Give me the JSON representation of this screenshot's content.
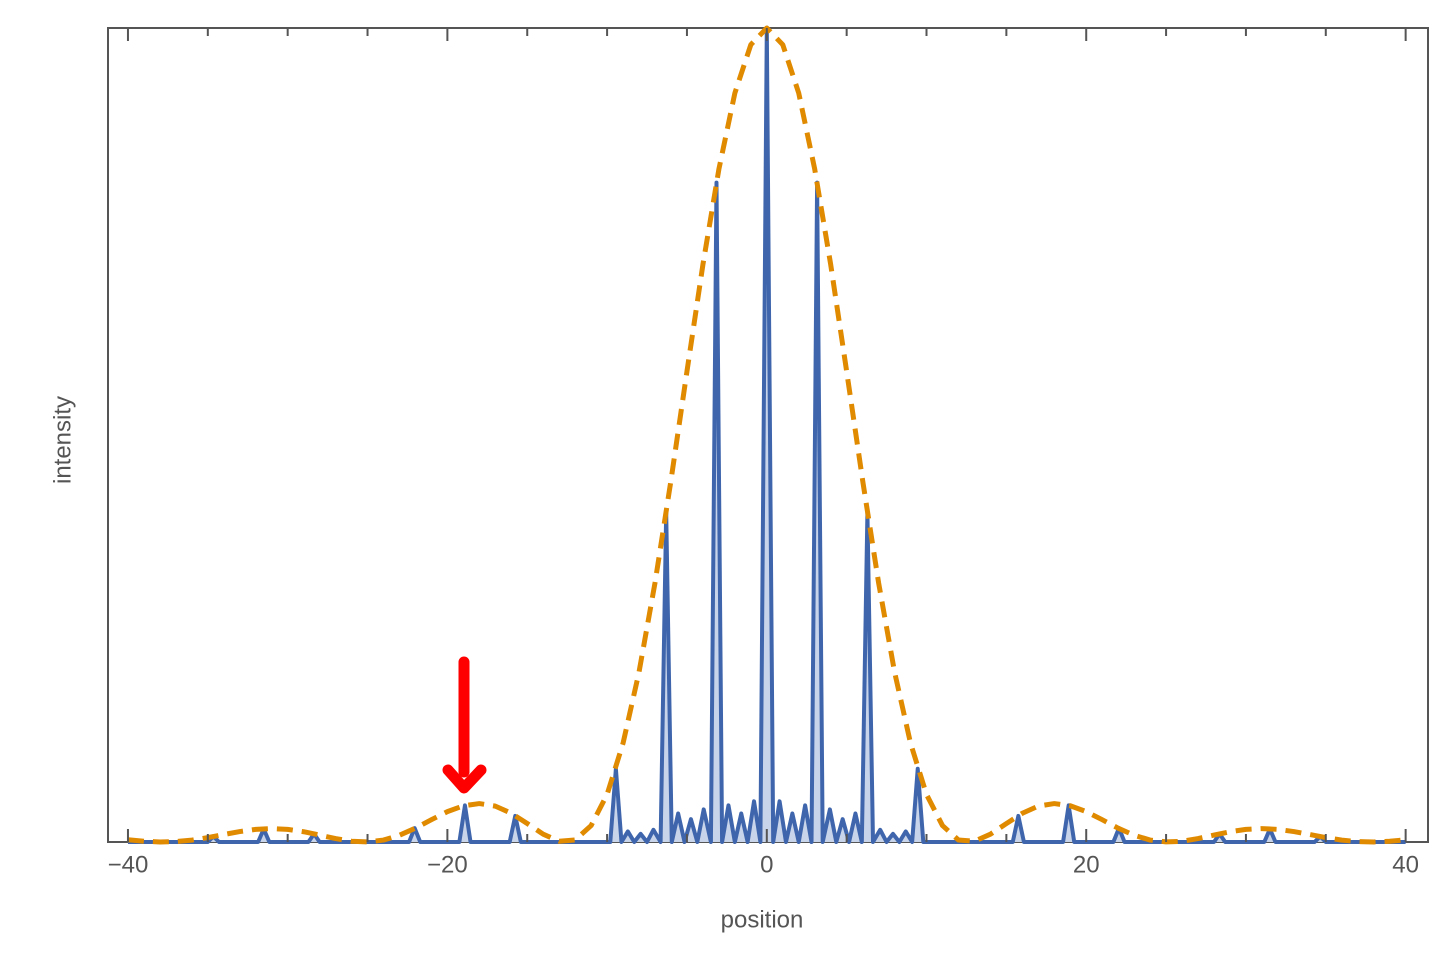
{
  "chart_data": {
    "type": "line",
    "xlabel": "position",
    "ylabel": "intensity",
    "xlim": [
      -41.25,
      41.4
    ],
    "ylim": [
      0,
      1
    ],
    "xticks": [
      {
        "value": -40,
        "label": "−40"
      },
      {
        "value": -20,
        "label": "−20"
      },
      0,
      20,
      40
    ],
    "xminor_ticks": [
      -35,
      -30,
      -25,
      -15,
      -10,
      -5,
      5,
      10,
      15,
      25,
      30,
      35
    ],
    "series": [
      {
        "color": "#3f66ad",
        "fill_color": "#c8d4ea",
        "dashed": false,
        "x": [
          -40,
          -35,
          -34.65,
          -34.3,
          -31.85,
          -31.5,
          -31.15,
          -28.7,
          -28.35,
          -28,
          -22.4,
          -22.05,
          -21.7,
          -19.25,
          -18.9,
          -18.55,
          -16.1,
          -15.75,
          -15.4,
          -9.8,
          -9.45,
          -9.1,
          -8.7,
          -8.3,
          -7.9,
          -7.5,
          -7.1,
          -6.65,
          -6.3,
          -5.95,
          -5.55,
          -5.15,
          -4.75,
          -4.35,
          -3.95,
          -3.5,
          -3.15,
          -2.8,
          -2.4,
          -2,
          -1.6,
          -1.2,
          -0.8,
          -0.4,
          0,
          0.4,
          0.8,
          1.2,
          1.6,
          2,
          2.4,
          2.8,
          3.15,
          3.5,
          3.95,
          4.35,
          4.75,
          5.15,
          5.55,
          5.95,
          6.3,
          6.65,
          7.1,
          7.5,
          7.9,
          8.3,
          8.7,
          9.1,
          9.45,
          9.8,
          15.4,
          15.75,
          16.1,
          18.55,
          18.9,
          19.25,
          21.7,
          22.05,
          22.4,
          28,
          28.35,
          28.7,
          31.15,
          31.5,
          31.85,
          34.3,
          34.65,
          35,
          40
        ],
        "values": [
          0,
          0,
          0.007,
          0,
          0,
          0.016,
          0,
          0,
          0.01,
          0,
          0,
          0.017,
          0,
          0,
          0.045,
          0,
          0,
          0.032,
          0,
          0,
          0.09,
          0,
          0.013,
          0,
          0.01,
          0,
          0.015,
          0,
          0.405,
          0,
          0.035,
          0,
          0.028,
          0,
          0.04,
          0,
          0.81,
          0,
          0.045,
          0,
          0.035,
          0,
          0.05,
          0,
          1,
          0,
          0.05,
          0,
          0.035,
          0,
          0.045,
          0,
          0.81,
          0,
          0.04,
          0,
          0.028,
          0,
          0.035,
          0,
          0.405,
          0,
          0.015,
          0,
          0.01,
          0,
          0.013,
          0,
          0.09,
          0,
          0,
          0.032,
          0,
          0,
          0.045,
          0,
          0,
          0.017,
          0,
          0,
          0.01,
          0,
          0,
          0.016,
          0,
          0,
          0.007,
          0,
          0
        ]
      },
      {
        "color": "#e08a00",
        "dashed": true,
        "x": [
          -40,
          -39,
          -38,
          -37,
          -36,
          -35,
          -34,
          -33,
          -32,
          -31,
          -30,
          -29,
          -28,
          -27,
          -26,
          -25,
          -24,
          -23,
          -22,
          -21,
          -20,
          -19,
          -18,
          -17,
          -16,
          -15,
          -14,
          -13,
          -12,
          -11,
          -10,
          -9,
          -8,
          -7,
          -6,
          -5,
          -4,
          -3,
          -2,
          -1,
          0,
          1,
          2,
          3,
          4,
          5,
          6,
          7,
          8,
          9,
          10,
          11,
          12,
          13,
          14,
          15,
          16,
          17,
          18,
          19,
          20,
          21,
          22,
          23,
          24,
          25,
          26,
          27,
          28,
          29,
          30,
          31,
          32,
          33,
          34,
          35,
          36,
          37,
          38,
          39,
          40
        ],
        "values": [
          0.0027,
          0.0009,
          3e-05,
          0.0005,
          0.0023,
          0.0054,
          0.0092,
          0.0128,
          0.0155,
          0.0165,
          0.0155,
          0.0126,
          0.0085,
          0.0042,
          0.0009,
          0.0001,
          0.0024,
          0.0083,
          0.017,
          0.0274,
          0.0373,
          0.0445,
          0.0472,
          0.0441,
          0.0353,
          0.0227,
          0.0096,
          0.00094,
          0.0025,
          0.0202,
          0.0584,
          0.1214,
          0.2088,
          0.3184,
          0.4443,
          0.5781,
          0.7094,
          0.8266,
          0.92,
          0.9795,
          1,
          0.9795,
          0.92,
          0.8266,
          0.7094,
          0.5781,
          0.4443,
          0.3184,
          0.2088,
          0.1214,
          0.0584,
          0.0202,
          0.0025,
          0.00094,
          0.0096,
          0.0227,
          0.0353,
          0.0441,
          0.0472,
          0.0445,
          0.0373,
          0.0274,
          0.017,
          0.0083,
          0.0024,
          0.0001,
          0.0009,
          0.0042,
          0.0085,
          0.0126,
          0.0155,
          0.0165,
          0.0155,
          0.0128,
          0.0092,
          0.0054,
          0.0023,
          0.0005,
          3e-05,
          0.0009,
          0.0027
        ]
      }
    ]
  }
}
